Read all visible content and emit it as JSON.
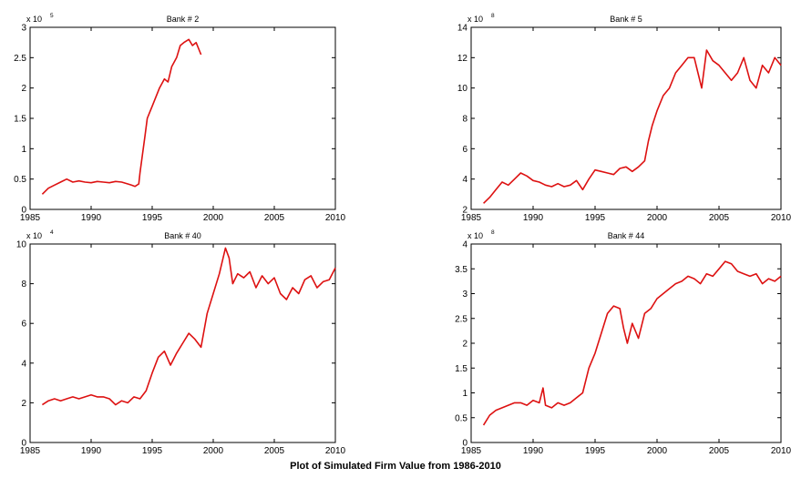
{
  "figure_caption": "Plot of Simulated Firm Value from 1986-2010",
  "colors": {
    "line": "#dd1111",
    "axis": "#000000"
  },
  "chart_data": [
    {
      "type": "line",
      "title": "Bank # 2",
      "multiplier": "x 10",
      "exponent": "5",
      "xlim": [
        1985,
        2010
      ],
      "ylim": [
        0,
        3
      ],
      "xticks": [
        1985,
        1990,
        1995,
        2000,
        2005,
        2010
      ],
      "yticks": [
        0,
        0.5,
        1,
        1.5,
        2,
        2.5,
        3
      ],
      "x": [
        1986,
        1986.5,
        1987,
        1987.5,
        1988,
        1988.5,
        1989,
        1989.5,
        1990,
        1990.5,
        1991,
        1991.5,
        1992,
        1992.5,
        1993,
        1993.3,
        1993.6,
        1993.9,
        1994,
        1994.2,
        1994.4,
        1994.6,
        1994.8,
        1995,
        1995.3,
        1995.6,
        1996,
        1996.3,
        1996.6,
        1997,
        1997.3,
        1997.6,
        1998,
        1998.3,
        1998.6,
        1999
      ],
      "y": [
        0.25,
        0.35,
        0.4,
        0.45,
        0.5,
        0.45,
        0.47,
        0.45,
        0.44,
        0.46,
        0.45,
        0.44,
        0.46,
        0.45,
        0.42,
        0.4,
        0.38,
        0.42,
        0.6,
        0.9,
        1.2,
        1.5,
        1.6,
        1.7,
        1.85,
        2.0,
        2.15,
        2.1,
        2.35,
        2.5,
        2.7,
        2.75,
        2.8,
        2.7,
        2.75,
        2.55
      ]
    },
    {
      "type": "line",
      "title": "Bank # 5",
      "multiplier": "x 10",
      "exponent": "8",
      "xlim": [
        1985,
        2010
      ],
      "ylim": [
        2,
        14
      ],
      "xticks": [
        1985,
        1990,
        1995,
        2000,
        2005,
        2010
      ],
      "yticks": [
        2,
        4,
        6,
        8,
        10,
        12,
        14
      ],
      "x": [
        1986,
        1986.5,
        1987,
        1987.5,
        1988,
        1988.5,
        1989,
        1989.5,
        1990,
        1990.5,
        1991,
        1991.5,
        1992,
        1992.5,
        1993,
        1993.5,
        1994,
        1994.5,
        1995,
        1995.5,
        1996,
        1996.5,
        1997,
        1997.5,
        1998,
        1998.5,
        1999,
        1999.3,
        1999.6,
        2000,
        2000.5,
        2001,
        2001.5,
        2002,
        2002.5,
        2003,
        2003.3,
        2003.6,
        2004,
        2004.5,
        2005,
        2005.5,
        2006,
        2006.5,
        2007,
        2007.5,
        2008,
        2008.5,
        2009,
        2009.5,
        2010
      ],
      "y": [
        2.4,
        2.8,
        3.3,
        3.8,
        3.6,
        4.0,
        4.4,
        4.2,
        3.9,
        3.8,
        3.6,
        3.5,
        3.7,
        3.5,
        3.6,
        3.9,
        3.3,
        4.0,
        4.6,
        4.5,
        4.4,
        4.3,
        4.7,
        4.8,
        4.5,
        4.8,
        5.2,
        6.5,
        7.5,
        8.5,
        9.5,
        10.0,
        11.0,
        11.5,
        12.0,
        12.0,
        11.0,
        10.0,
        12.5,
        11.8,
        11.5,
        11.0,
        10.5,
        11.0,
        12.0,
        10.5,
        10.0,
        11.5,
        11.0,
        12.0,
        11.5
      ]
    },
    {
      "type": "line",
      "title": "Bank # 40",
      "multiplier": "x 10",
      "exponent": "4",
      "xlim": [
        1985,
        2010
      ],
      "ylim": [
        0,
        10
      ],
      "xticks": [
        1985,
        1990,
        1995,
        2000,
        2005,
        2010
      ],
      "yticks": [
        0,
        2,
        4,
        6,
        8,
        10
      ],
      "x": [
        1986,
        1986.5,
        1987,
        1987.5,
        1988,
        1988.5,
        1989,
        1989.5,
        1990,
        1990.5,
        1991,
        1991.5,
        1992,
        1992.5,
        1993,
        1993.5,
        1994,
        1994.5,
        1995,
        1995.5,
        1996,
        1996.5,
        1997,
        1997.5,
        1998,
        1998.5,
        1999,
        1999.5,
        2000,
        2000.5,
        2001,
        2001.3,
        2001.6,
        2002,
        2002.5,
        2003,
        2003.5,
        2004,
        2004.5,
        2005,
        2005.5,
        2006,
        2006.5,
        2007,
        2007.5,
        2008,
        2008.5,
        2009,
        2009.5,
        2010
      ],
      "y": [
        1.9,
        2.1,
        2.2,
        2.1,
        2.2,
        2.3,
        2.2,
        2.3,
        2.4,
        2.3,
        2.3,
        2.2,
        1.9,
        2.1,
        2.0,
        2.3,
        2.2,
        2.6,
        3.5,
        4.3,
        4.6,
        3.9,
        4.5,
        5.0,
        5.5,
        5.2,
        4.8,
        6.5,
        7.5,
        8.5,
        9.8,
        9.3,
        8.0,
        8.5,
        8.3,
        8.6,
        7.8,
        8.4,
        8.0,
        8.3,
        7.5,
        7.2,
        7.8,
        7.5,
        8.2,
        8.4,
        7.8,
        8.1,
        8.2,
        8.8
      ]
    },
    {
      "type": "line",
      "title": "Bank # 44",
      "multiplier": "x 10",
      "exponent": "8",
      "xlim": [
        1985,
        2010
      ],
      "ylim": [
        0,
        4
      ],
      "xticks": [
        1985,
        1990,
        1995,
        2000,
        2005,
        2010
      ],
      "yticks": [
        0,
        0.5,
        1,
        1.5,
        2,
        2.5,
        3,
        3.5,
        4
      ],
      "x": [
        1986,
        1986.5,
        1987,
        1987.5,
        1988,
        1988.5,
        1989,
        1989.5,
        1990,
        1990.5,
        1990.8,
        1991,
        1991.5,
        1992,
        1992.5,
        1993,
        1993.5,
        1994,
        1994.5,
        1995,
        1995.5,
        1996,
        1996.5,
        1997,
        1997.3,
        1997.6,
        1998,
        1998.5,
        1999,
        1999.5,
        2000,
        2000.5,
        2001,
        2001.5,
        2002,
        2002.5,
        2003,
        2003.5,
        2004,
        2004.5,
        2005,
        2005.5,
        2006,
        2006.5,
        2007,
        2007.5,
        2008,
        2008.5,
        2009,
        2009.5,
        2010
      ],
      "y": [
        0.35,
        0.55,
        0.65,
        0.7,
        0.75,
        0.8,
        0.8,
        0.75,
        0.85,
        0.8,
        1.1,
        0.75,
        0.7,
        0.8,
        0.75,
        0.8,
        0.9,
        1.0,
        1.5,
        1.8,
        2.2,
        2.6,
        2.75,
        2.7,
        2.3,
        2.0,
        2.4,
        2.1,
        2.6,
        2.7,
        2.9,
        3.0,
        3.1,
        3.2,
        3.25,
        3.35,
        3.3,
        3.2,
        3.4,
        3.35,
        3.5,
        3.65,
        3.6,
        3.45,
        3.4,
        3.35,
        3.4,
        3.2,
        3.3,
        3.25,
        3.35
      ]
    }
  ]
}
